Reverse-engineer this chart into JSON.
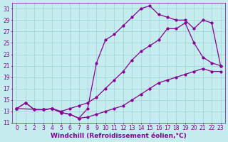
{
  "xlabel": "Windchill (Refroidissement éolien,°C)",
  "background_color": "#c5ecee",
  "grid_color": "#a0d0d4",
  "line_color": "#880099",
  "xlim": [
    -0.5,
    23.5
  ],
  "ylim": [
    11,
    32
  ],
  "xticks": [
    0,
    1,
    2,
    3,
    4,
    5,
    6,
    7,
    8,
    9,
    10,
    11,
    12,
    13,
    14,
    15,
    16,
    17,
    18,
    19,
    20,
    21,
    22,
    23
  ],
  "yticks": [
    11,
    13,
    15,
    17,
    19,
    21,
    23,
    25,
    27,
    29,
    31
  ],
  "line1_x": [
    0,
    1,
    2,
    3,
    4,
    5,
    6,
    7,
    8,
    9,
    10,
    11,
    12,
    13,
    14,
    15,
    16,
    17,
    18,
    19,
    20,
    21,
    22,
    23
  ],
  "line1_y": [
    13.5,
    14.5,
    13.3,
    13.3,
    13.5,
    12.8,
    12.5,
    11.8,
    12.0,
    12.5,
    13.0,
    13.5,
    14.0,
    15.0,
    16.0,
    17.0,
    18.0,
    18.5,
    19.0,
    19.5,
    20.0,
    20.5,
    20.0,
    20.0
  ],
  "line2_x": [
    0,
    1,
    2,
    3,
    4,
    5,
    6,
    7,
    8,
    9,
    10,
    11,
    12,
    13,
    14,
    15,
    16,
    17,
    18,
    19,
    20,
    21,
    22,
    23
  ],
  "line2_y": [
    13.5,
    14.5,
    13.3,
    13.3,
    13.5,
    13.0,
    13.5,
    14.0,
    14.5,
    15.5,
    17.0,
    18.5,
    20.0,
    22.0,
    23.5,
    24.5,
    25.5,
    27.5,
    27.5,
    28.5,
    25.0,
    22.5,
    21.5,
    21.0
  ],
  "line3_x": [
    0,
    3,
    4,
    5,
    6,
    7,
    8,
    9,
    10,
    11,
    12,
    13,
    14,
    15,
    16,
    17,
    18,
    19,
    20,
    21,
    22,
    23
  ],
  "line3_y": [
    13.5,
    13.3,
    13.5,
    12.8,
    12.5,
    11.8,
    13.5,
    21.5,
    25.5,
    26.5,
    28.0,
    29.5,
    31.0,
    31.5,
    30.0,
    29.5,
    29.0,
    29.0,
    27.5,
    29.0,
    28.5,
    21.0
  ],
  "marker": ".",
  "markersize": 4,
  "linewidth": 0.9,
  "xlabel_fontsize": 6.5,
  "tick_fontsize": 5.5
}
